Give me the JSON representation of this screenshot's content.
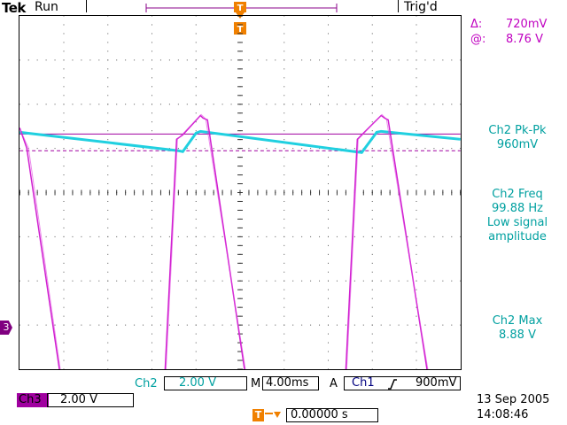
{
  "header": {
    "brand": "Tek",
    "status": "Run",
    "trigger_state": "Trig'd",
    "trigger_marker": "T"
  },
  "cursor_readout": {
    "delta_symbol": "Δ:",
    "delta_value": "720mV",
    "at_symbol": "@:",
    "at_value": "8.76 V"
  },
  "measurements": [
    {
      "label": "Ch2 Pk-Pk",
      "value": "960mV",
      "note": ""
    },
    {
      "label": "Ch2 Freq",
      "value": "99.88 Hz",
      "note": "Low signal amplitude"
    },
    {
      "label": "Ch2 Max",
      "value": "8.88 V",
      "note": ""
    }
  ],
  "measure_lines": {
    "freq_line2": "Low signal",
    "freq_line3": "amplitude"
  },
  "ch2": {
    "name": "Ch2",
    "scale": "2.00 V"
  },
  "ch3": {
    "name": "Ch3",
    "scale": "2.00 V",
    "ground_marker": "3"
  },
  "timebase": {
    "label": "M",
    "value": "4.00ms"
  },
  "trigger": {
    "mode": "A",
    "source": "Ch1",
    "slope_icon": "rising-edge",
    "level": "900mV"
  },
  "trigger_position": {
    "value": "0.00000 s",
    "marker": "T"
  },
  "timestamp": {
    "date": "13 Sep  2005",
    "time": "14:08:46"
  },
  "colors": {
    "ch2": "#20d0e0",
    "ch3": "#d020d0",
    "label_cyan": "#00a0a0",
    "label_magenta": "#c000c0"
  }
}
